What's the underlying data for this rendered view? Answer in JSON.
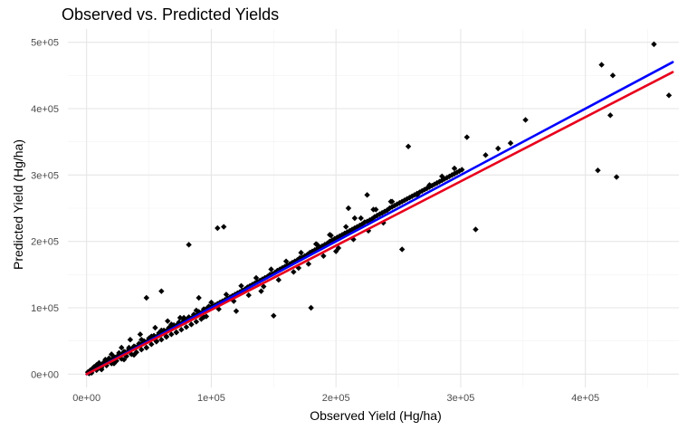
{
  "chart_data": {
    "type": "scatter",
    "title": "Observed vs. Predicted Yields",
    "xlabel": "Observed Yield (Hg/ha)",
    "ylabel": "Predicted Yield (Hg/ha)",
    "xlim": [
      -15000,
      475000
    ],
    "ylim": [
      -20000,
      520000
    ],
    "x_ticks": [
      0,
      100000,
      200000,
      300000,
      400000
    ],
    "x_tick_labels": [
      "0e+00",
      "1e+05",
      "2e+05",
      "3e+05",
      "4e+05"
    ],
    "y_ticks": [
      0,
      100000,
      200000,
      300000,
      400000,
      500000
    ],
    "y_tick_labels": [
      "0e+00",
      "1e+05",
      "2e+05",
      "3e+05",
      "4e+05",
      "5e+05"
    ],
    "grid": true,
    "colors": {
      "points": "#000000",
      "identity_line": "#0000ff",
      "fit_line": "#e8001c",
      "grid_major": "#e6e6e6",
      "grid_minor": "#f2f2f2",
      "tick_label": "#4d4d4d"
    },
    "series": [
      {
        "kind": "points",
        "x": [
          1000,
          3000,
          5000,
          7000,
          9000,
          11000,
          13000,
          15000,
          17000,
          19000,
          21000,
          23000,
          25000,
          27000,
          29000,
          31000,
          33000,
          35000,
          37000,
          39000,
          41000,
          43000,
          45000,
          47000,
          49000,
          51000,
          53000,
          55000,
          57000,
          59000,
          61000,
          63000,
          65000,
          67000,
          69000,
          71000,
          73000,
          75000,
          77000,
          79000,
          81000,
          83000,
          85000,
          87000,
          89000,
          91000,
          93000,
          95000,
          97000,
          99000,
          101000,
          103000,
          105000,
          107000,
          109000,
          111000,
          113000,
          115000,
          117000,
          119000,
          121000,
          123000,
          125000,
          127000,
          129000,
          131000,
          133000,
          135000,
          137000,
          139000,
          141000,
          143000,
          145000,
          147000,
          149000,
          151000,
          153000,
          155000,
          157000,
          159000,
          161000,
          163000,
          165000,
          167000,
          169000,
          171000,
          173000,
          175000,
          177000,
          179000,
          181000,
          183000,
          185000,
          187000,
          189000,
          191000,
          193000,
          195000,
          197000,
          199000,
          201000,
          203000,
          205000,
          207000,
          209000,
          211000,
          213000,
          215000,
          217000,
          219000,
          221000,
          223000,
          225000,
          227000,
          229000,
          231000,
          233000,
          235000,
          237000,
          239000,
          241000,
          243000,
          245000,
          247000,
          249000,
          251000,
          253000,
          255000,
          257000,
          259000,
          261000,
          263000,
          265000,
          267000,
          269000,
          271000,
          273000,
          275000,
          277000,
          279000,
          281000,
          283000,
          285000,
          287000,
          289000,
          291000,
          293000,
          295000,
          297000,
          299000,
          301000,
          2000,
          4000,
          6000,
          8000,
          10000,
          12000,
          14000,
          16000,
          18000,
          20000,
          22000,
          24000,
          26000,
          28000,
          30000,
          32000,
          34000,
          36000,
          38000,
          40000,
          42000,
          44000,
          46000,
          48000,
          50000,
          52000,
          54000,
          56000,
          58000,
          60000,
          62000,
          64000,
          66000,
          68000,
          70000,
          72000,
          74000,
          76000,
          78000,
          80000,
          82000,
          84000,
          86000,
          88000,
          90000,
          92000,
          94000,
          96000,
          98000,
          8000,
          12000,
          18000,
          22000,
          26000,
          30000,
          34000,
          38000,
          44000,
          48000,
          52000,
          56000,
          60000,
          64000,
          68000,
          72000,
          78000,
          84000,
          88000,
          94000,
          100000,
          106000,
          112000,
          118000,
          124000,
          130000,
          136000,
          142000,
          148000,
          154000,
          160000,
          166000,
          172000,
          178000,
          184000,
          190000,
          196000,
          202000,
          208000,
          214000,
          220000,
          226000,
          232000,
          238000,
          244000,
          48000,
          60000,
          82000,
          105000,
          110000,
          258000,
          305000,
          312000,
          352000,
          410000,
          413000,
          420000,
          422000,
          425000,
          455000,
          467000,
          150000,
          180000,
          200000,
          210000,
          225000,
          253000,
          97000,
          90000,
          120000,
          140000,
          35000,
          28000,
          20000,
          15000,
          10000,
          6000,
          4000,
          2500,
          1500,
          43000,
          55000,
          65000,
          75000,
          170000,
          185000,
          195000,
          215000,
          230000,
          245000,
          265000,
          275000,
          285000,
          295000,
          320000,
          330000,
          340000
        ],
        "y": [
          3000,
          6000,
          9000,
          10000,
          12000,
          14000,
          16000,
          17000,
          19000,
          21000,
          23000,
          25000,
          27000,
          28000,
          31000,
          33000,
          34000,
          36000,
          39000,
          41000,
          42000,
          44000,
          47000,
          48000,
          50000,
          52000,
          55000,
          56000,
          58000,
          60000,
          62000,
          64000,
          67000,
          68000,
          70000,
          72000,
          75000,
          76000,
          78000,
          80000,
          82000,
          84000,
          86000,
          88000,
          90000,
          92000,
          94000,
          97000,
          98000,
          100000,
          103000,
          104000,
          106000,
          108000,
          110000,
          112000,
          114000,
          116000,
          118000,
          120000,
          122000,
          124000,
          126000,
          128000,
          131000,
          133000,
          135000,
          137000,
          139000,
          141000,
          143000,
          145000,
          147000,
          150000,
          151000,
          153000,
          156000,
          158000,
          160000,
          162000,
          164000,
          166000,
          168000,
          170000,
          172000,
          175000,
          176000,
          178000,
          180000,
          183000,
          185000,
          187000,
          189000,
          191000,
          193000,
          195000,
          197000,
          200000,
          202000,
          204000,
          206000,
          208000,
          210000,
          212000,
          214000,
          216000,
          218000,
          220000,
          222000,
          224000,
          226000,
          229000,
          230000,
          232000,
          234000,
          237000,
          239000,
          241000,
          243000,
          245000,
          247000,
          250000,
          252000,
          254000,
          256000,
          258000,
          260000,
          262000,
          264000,
          266000,
          268000,
          270000,
          272000,
          274000,
          276000,
          278000,
          280000,
          282000,
          284000,
          286000,
          288000,
          290000,
          292000,
          294000,
          296000,
          298000,
          300000,
          302000,
          304000,
          306000,
          308000,
          1000,
          2000,
          8000,
          6000,
          13000,
          10000,
          18000,
          13000,
          22000,
          16000,
          26000,
          20000,
          30000,
          23000,
          34000,
          27000,
          38000,
          30000,
          42000,
          33000,
          46000,
          37000,
          50000,
          40000,
          54000,
          45000,
          58000,
          49000,
          62000,
          52000,
          66000,
          56000,
          70000,
          60000,
          74000,
          63000,
          78000,
          67000,
          82000,
          71000,
          86000,
          75000,
          90000,
          79000,
          94000,
          83000,
          98000,
          87000,
          102000,
          14000,
          7000,
          24000,
          16000,
          32000,
          22000,
          40000,
          29000,
          52000,
          40000,
          57000,
          50000,
          66000,
          57000,
          75000,
          63000,
          85000,
          75000,
          96000,
          86000,
          108000,
          98000,
          120000,
          110000,
          133000,
          119000,
          145000,
          132000,
          158000,
          142000,
          170000,
          154000,
          183000,
          166000,
          196000,
          178000,
          209000,
          190000,
          222000,
          203000,
          235000,
          216000,
          248000,
          228000,
          260000,
          115000,
          125000,
          195000,
          220000,
          222000,
          343000,
          357000,
          218000,
          383000,
          307000,
          466000,
          390000,
          450000,
          297000,
          497000,
          420000,
          88000,
          100000,
          185000,
          250000,
          270000,
          188000,
          100000,
          115000,
          95000,
          125000,
          52000,
          40000,
          30000,
          22000,
          17000,
          11000,
          6000,
          4000,
          3000,
          60000,
          70000,
          80000,
          85000,
          160000,
          195000,
          210000,
          235000,
          248000,
          260000,
          270000,
          285000,
          298000,
          310000,
          330000,
          340000,
          348000
        ]
      },
      {
        "kind": "line",
        "name": "",
        "color": "#0000ff",
        "x": [
          0,
          470000
        ],
        "y": [
          0,
          470000
        ]
      },
      {
        "kind": "line",
        "name": "",
        "color": "#e8001c",
        "x": [
          0,
          470000
        ],
        "y": [
          0,
          455000
        ]
      }
    ]
  }
}
